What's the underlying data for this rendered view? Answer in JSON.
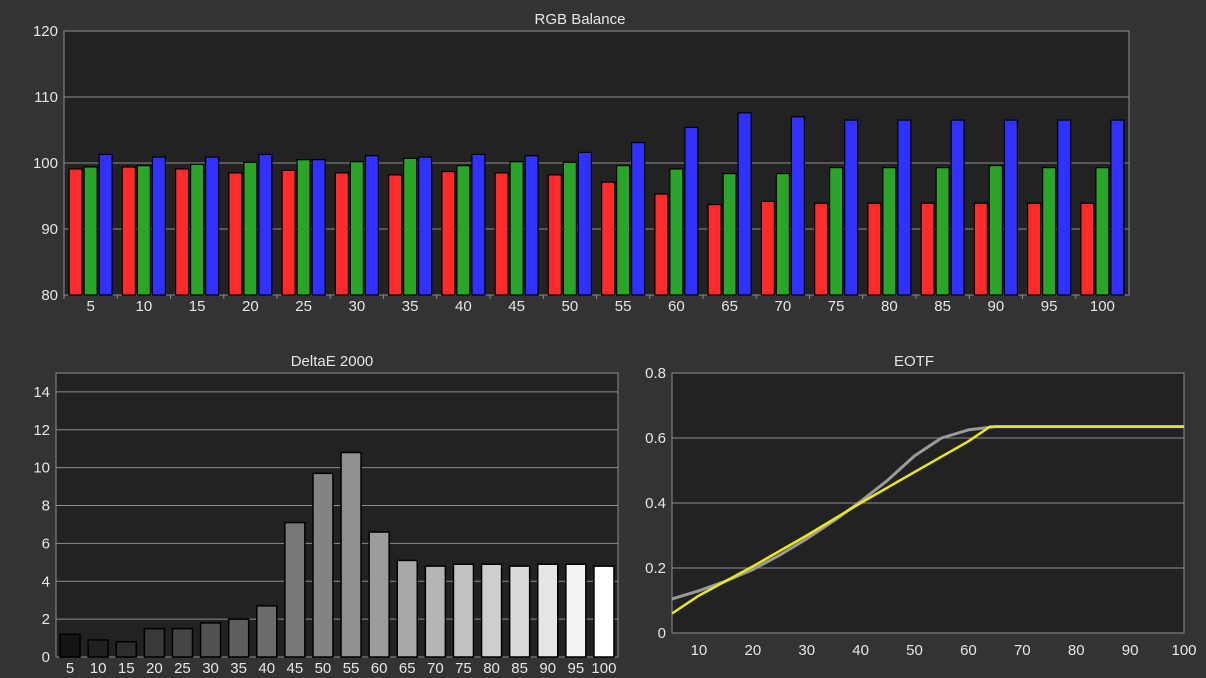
{
  "colors": {
    "background": "#333333",
    "plot_bg": "#222222",
    "grid": "#8c8c8c",
    "text": "#e6e6e6",
    "red": "#ff2a2a",
    "green": "#2aa52a",
    "blue": "#3030ff",
    "eotf_measured": "#e8e81a",
    "eotf_target": "#9a9a9a"
  },
  "chart_data": [
    {
      "id": "rgb",
      "type": "bar",
      "title": "RGB Balance",
      "categories": [
        "5",
        "10",
        "15",
        "20",
        "25",
        "30",
        "35",
        "40",
        "45",
        "50",
        "55",
        "60",
        "65",
        "70",
        "75",
        "80",
        "85",
        "90",
        "95",
        "100"
      ],
      "ylim": [
        80,
        120
      ],
      "yticks": [
        80,
        90,
        100,
        110,
        120
      ],
      "grid": true,
      "series": [
        {
          "color": "red",
          "values": [
            99.1,
            99.4,
            99.1,
            98.5,
            98.9,
            98.5,
            98.2,
            98.7,
            98.5,
            98.2,
            97.1,
            95.3,
            93.7,
            94.2,
            93.9,
            93.9,
            93.9,
            93.9,
            93.9,
            93.9
          ]
        },
        {
          "color": "green",
          "values": [
            99.4,
            99.6,
            99.8,
            100.1,
            100.5,
            100.2,
            100.7,
            99.6,
            100.2,
            100.1,
            99.6,
            99.1,
            98.4,
            98.4,
            99.3,
            99.3,
            99.3,
            99.6,
            99.3,
            99.3
          ]
        },
        {
          "color": "blue",
          "values": [
            101.3,
            100.9,
            100.9,
            101.3,
            100.5,
            101.1,
            100.9,
            101.3,
            101.1,
            101.6,
            103.1,
            105.4,
            107.6,
            107.0,
            106.5,
            106.5,
            106.5,
            106.5,
            106.5,
            106.5
          ]
        }
      ]
    },
    {
      "id": "de",
      "type": "bar",
      "title": "DeltaE 2000",
      "categories": [
        "5",
        "10",
        "15",
        "20",
        "25",
        "30",
        "35",
        "40",
        "45",
        "50",
        "55",
        "60",
        "65",
        "70",
        "75",
        "80",
        "85",
        "90",
        "95",
        "100"
      ],
      "values": [
        1.2,
        0.9,
        0.8,
        1.5,
        1.5,
        1.8,
        2.0,
        2.7,
        7.1,
        9.7,
        10.8,
        6.6,
        5.1,
        4.8,
        4.9,
        4.9,
        4.8,
        4.9,
        4.9,
        4.8
      ],
      "ylim": [
        0,
        15
      ],
      "yticks": [
        0,
        2,
        4,
        6,
        8,
        10,
        12,
        14
      ],
      "grid": true
    },
    {
      "id": "eotf",
      "type": "line",
      "title": "EOTF",
      "xlim": [
        5,
        100
      ],
      "xticks": [
        10,
        20,
        30,
        40,
        50,
        60,
        70,
        80,
        90,
        100
      ],
      "ylim": [
        0,
        0.8
      ],
      "yticks": [
        "0",
        "0.2",
        "0.4",
        "0.6",
        "0.8"
      ],
      "grid": true,
      "series": [
        {
          "color": "eotf_target",
          "x": [
            5,
            10,
            15,
            20,
            25,
            30,
            35,
            40,
            45,
            50,
            55,
            60,
            65,
            70,
            80,
            90,
            100
          ],
          "y": [
            0.105,
            0.13,
            0.16,
            0.195,
            0.24,
            0.29,
            0.345,
            0.405,
            0.47,
            0.545,
            0.6,
            0.625,
            0.635,
            0.635,
            0.635,
            0.635,
            0.635
          ]
        },
        {
          "color": "eotf_measured",
          "x": [
            5,
            10,
            20,
            30,
            40,
            50,
            60,
            64,
            70,
            80,
            90,
            100
          ],
          "y": [
            0.06,
            0.115,
            0.205,
            0.3,
            0.4,
            0.495,
            0.59,
            0.635,
            0.635,
            0.635,
            0.635,
            0.635
          ]
        }
      ]
    }
  ]
}
